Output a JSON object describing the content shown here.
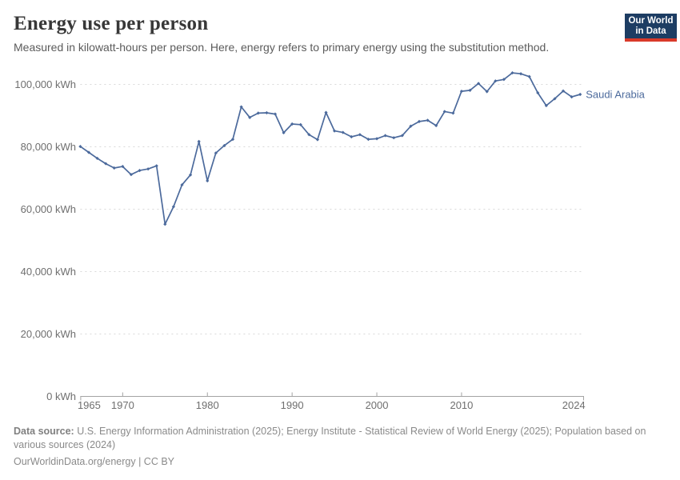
{
  "header": {
    "title": "Energy use per person",
    "subtitle": "Measured in kilowatt-hours per person. Here, energy refers to primary energy using the substitution method.",
    "logo": {
      "line1": "Our World",
      "line2": "in Data"
    }
  },
  "footer": {
    "source_label": "Data source:",
    "source_text": " U.S. Energy Information Administration (2025); Energy Institute - Statistical Review of World Energy (2025); Population based on various sources (2024)",
    "license_text": "OurWorldinData.org/energy | CC BY"
  },
  "colors": {
    "line": "#4C6A9C",
    "grid": "#d9d9d9",
    "axis": "#a3a3a3",
    "tick_text": "#6f6f6f",
    "title_text": "#383838",
    "subtitle_text": "#5b5b5b",
    "footer_text": "#8a8a8a",
    "logo_background": "#1d3d63",
    "logo_bar": "#d93a2a"
  },
  "chart_data": {
    "type": "line",
    "title": "Energy use per person",
    "unit": "kWh per person",
    "xlim": [
      1965,
      2024
    ],
    "ylim": [
      0,
      100000
    ],
    "grid": "horizontal-dashed",
    "legend_position": "end-of-line-label",
    "xticks": [
      {
        "year": 1965,
        "label": "1965"
      },
      {
        "year": 1970,
        "label": "1970"
      },
      {
        "year": 1980,
        "label": "1980"
      },
      {
        "year": 1990,
        "label": "1990"
      },
      {
        "year": 2000,
        "label": "2000"
      },
      {
        "year": 2010,
        "label": "2010"
      },
      {
        "year": 2024,
        "label": "2024"
      }
    ],
    "yticks": [
      {
        "value": 0,
        "label": "0 kWh"
      },
      {
        "value": 20000,
        "label": "20,000 kWh"
      },
      {
        "value": 40000,
        "label": "40,000 kWh"
      },
      {
        "value": 60000,
        "label": "60,000 kWh"
      },
      {
        "value": 80000,
        "label": "80,000 kWh"
      },
      {
        "value": 100000,
        "label": "100,000 kWh"
      }
    ],
    "series": [
      {
        "name": "Saudi Arabia",
        "color": "#4C6A9C",
        "x": [
          1965,
          1966,
          1967,
          1968,
          1969,
          1970,
          1971,
          1972,
          1973,
          1974,
          1975,
          1976,
          1977,
          1978,
          1979,
          1980,
          1981,
          1982,
          1983,
          1984,
          1985,
          1986,
          1987,
          1988,
          1989,
          1990,
          1991,
          1992,
          1993,
          1994,
          1995,
          1996,
          1997,
          1998,
          1999,
          2000,
          2001,
          2002,
          2003,
          2004,
          2005,
          2006,
          2007,
          2008,
          2009,
          2010,
          2011,
          2012,
          2013,
          2014,
          2015,
          2016,
          2017,
          2018,
          2019,
          2020,
          2021,
          2022,
          2023,
          2024
        ],
        "values": [
          80100,
          78200,
          76300,
          74600,
          73200,
          73700,
          71100,
          72400,
          72900,
          73900,
          55200,
          60800,
          67800,
          71000,
          81700,
          69100,
          78000,
          80400,
          82400,
          92800,
          89400,
          90800,
          90900,
          90500,
          84500,
          87300,
          87100,
          83900,
          82300,
          91000,
          85100,
          84600,
          83200,
          83900,
          82400,
          82600,
          83600,
          82900,
          83600,
          86600,
          88100,
          88500,
          86800,
          91300,
          90800,
          97800,
          98100,
          100300,
          97700,
          101100,
          101600,
          103700,
          103400,
          102500,
          97300,
          93200,
          95400,
          97900,
          96000,
          96800
        ]
      }
    ]
  }
}
